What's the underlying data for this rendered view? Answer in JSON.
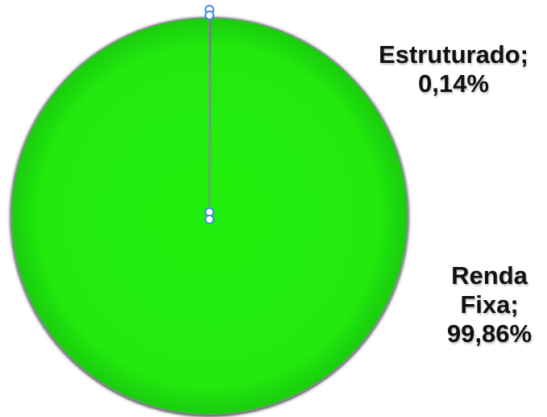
{
  "chart_data": {
    "type": "pie",
    "slices": [
      {
        "name": "Estruturado",
        "value": 0.14,
        "value_label": "0,14%",
        "color": "#c0c0c0"
      },
      {
        "name": "Renda Fixa",
        "value": 99.86,
        "value_label": "99,86%",
        "color": "#22ee11"
      }
    ],
    "labels": {
      "estruturado": {
        "line1": "Estruturado;",
        "line2": "0,14%"
      },
      "renda": {
        "line1": "Renda",
        "line2": "Fixa;",
        "line3": "99,86%"
      }
    },
    "edge_color": "#7f8f8f",
    "handle_color": "#3a8fd8"
  }
}
